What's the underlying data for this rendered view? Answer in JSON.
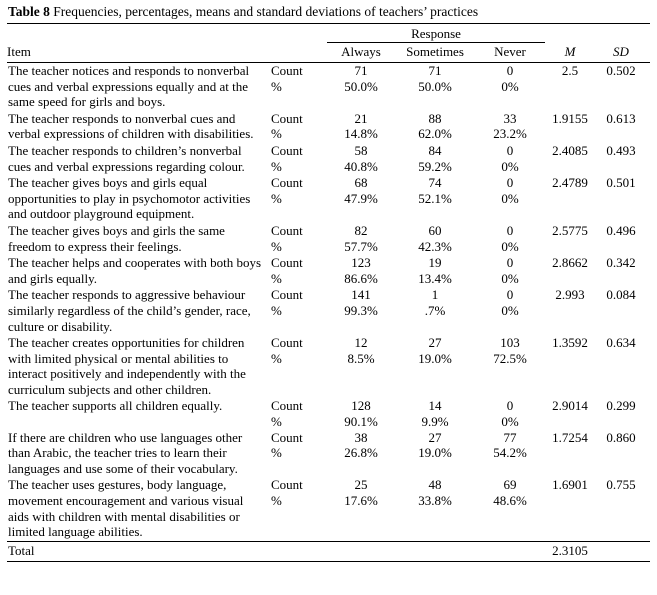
{
  "title": {
    "label": "Table 8",
    "text": "Frequencies, percentages, means and standard deviations of teachers’ practices"
  },
  "headers": {
    "item": "Item",
    "response": "Response",
    "always": "Always",
    "sometimes": "Sometimes",
    "never": "Never",
    "m": "M",
    "sd": "SD"
  },
  "labels": {
    "count": "Count",
    "percent": "%"
  },
  "rows": [
    {
      "item": "The teacher notices and responds to nonverbal cues and verbal expressions equally and at the same speed for girls and boys.",
      "counts": [
        "71",
        "71",
        "0"
      ],
      "percents": [
        "50.0%",
        "50.0%",
        "0%"
      ],
      "m": "2.5",
      "sd": "0.502"
    },
    {
      "item": "The teacher responds to nonverbal cues and verbal expressions of children with disabilities.",
      "counts": [
        "21",
        "88",
        "33"
      ],
      "percents": [
        "14.8%",
        "62.0%",
        "23.2%"
      ],
      "m": "1.9155",
      "sd": "0.613"
    },
    {
      "item": "The teacher responds to children’s nonverbal cues and verbal expressions regarding colour.",
      "counts": [
        "58",
        "84",
        "0"
      ],
      "percents": [
        "40.8%",
        "59.2%",
        "0%"
      ],
      "m": "2.4085",
      "sd": "0.493"
    },
    {
      "item": "The teacher gives boys and girls equal opportunities to play in psychomotor activities and outdoor playground equipment.",
      "counts": [
        "68",
        "74",
        "0"
      ],
      "percents": [
        "47.9%",
        "52.1%",
        "0%"
      ],
      "m": "2.4789",
      "sd": "0.501"
    },
    {
      "item": "The teacher gives boys and girls the same freedom to express their feelings.",
      "counts": [
        "82",
        "60",
        "0"
      ],
      "percents": [
        "57.7%",
        "42.3%",
        "0%"
      ],
      "m": "2.5775",
      "sd": "0.496"
    },
    {
      "item": "The teacher helps and cooperates with both boys and girls equally.",
      "counts": [
        "123",
        "19",
        "0"
      ],
      "percents": [
        "86.6%",
        "13.4%",
        "0%"
      ],
      "m": "2.8662",
      "sd": "0.342"
    },
    {
      "item": "The teacher responds to aggressive behaviour similarly regardless of the child’s gender, race, culture or disability.",
      "counts": [
        "141",
        "1",
        "0"
      ],
      "percents": [
        "99.3%",
        ".7%",
        "0%"
      ],
      "m": "2.993",
      "sd": "0.084"
    },
    {
      "item": "The teacher creates opportunities for children with limited physical or mental abilities to interact positively and independently with the curriculum subjects and other children.",
      "counts": [
        "12",
        "27",
        "103"
      ],
      "percents": [
        "8.5%",
        "19.0%",
        "72.5%"
      ],
      "m": "1.3592",
      "sd": "0.634"
    },
    {
      "item": "The teacher supports all children equally.",
      "counts": [
        "128",
        "14",
        "0"
      ],
      "percents": [
        "90.1%",
        "9.9%",
        "0%"
      ],
      "m": "2.9014",
      "sd": "0.299"
    },
    {
      "item": "If there are children who use languages other than Arabic, the teacher tries to learn their languages and use some of their vocabulary.",
      "counts": [
        "38",
        "27",
        "77"
      ],
      "percents": [
        "26.8%",
        "19.0%",
        "54.2%"
      ],
      "m": "1.7254",
      "sd": "0.860"
    },
    {
      "item": "The teacher uses gestures, body language, movement encouragement and various visual aids with children with mental disabilities or limited language abilities.",
      "counts": [
        "25",
        "48",
        "69"
      ],
      "percents": [
        "17.6%",
        "33.8%",
        "48.6%"
      ],
      "m": "1.6901",
      "sd": "0.755"
    }
  ],
  "total": {
    "label": "Total",
    "m": "2.3105"
  }
}
